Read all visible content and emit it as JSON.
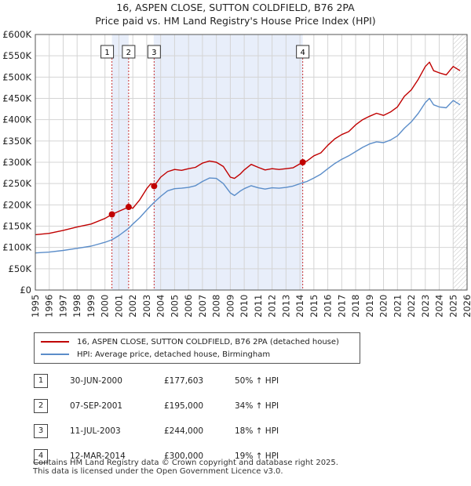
{
  "header": {
    "title": "16, ASPEN CLOSE, SUTTON COLDFIELD, B76 2PA",
    "subtitle": "Price paid vs. HM Land Registry's House Price Index (HPI)"
  },
  "colors": {
    "property": "#c00000",
    "hpi": "#5b8dc9",
    "shade": "#e8eefa",
    "grid": "#d4d4d4",
    "hatch": "#999999"
  },
  "chart_data": {
    "type": "line",
    "title": "16, ASPEN CLOSE, SUTTON COLDFIELD, B76 2PA",
    "xlabel": "",
    "ylabel": "",
    "xlim": [
      1995,
      2026
    ],
    "ylim": [
      0,
      600000
    ],
    "x_ticks": [
      "1995",
      "1996",
      "1997",
      "1998",
      "1999",
      "2000",
      "2001",
      "2002",
      "2003",
      "2004",
      "2005",
      "2006",
      "2007",
      "2008",
      "2009",
      "2010",
      "2011",
      "2012",
      "2013",
      "2014",
      "2015",
      "2016",
      "2017",
      "2018",
      "2019",
      "2020",
      "2021",
      "2022",
      "2023",
      "2024",
      "2025",
      "2026"
    ],
    "y_ticks": [
      {
        "value": 0,
        "label": "£0"
      },
      {
        "value": 50000,
        "label": "£50K"
      },
      {
        "value": 100000,
        "label": "£100K"
      },
      {
        "value": 150000,
        "label": "£150K"
      },
      {
        "value": 200000,
        "label": "£200K"
      },
      {
        "value": 250000,
        "label": "£250K"
      },
      {
        "value": 300000,
        "label": "£300K"
      },
      {
        "value": 350000,
        "label": "£350K"
      },
      {
        "value": 400000,
        "label": "£400K"
      },
      {
        "value": 450000,
        "label": "£450K"
      },
      {
        "value": 500000,
        "label": "£500K"
      },
      {
        "value": 550000,
        "label": "£550K"
      },
      {
        "value": 600000,
        "label": "£600K"
      }
    ],
    "grid": true,
    "shaded_ranges": [
      [
        2000.5,
        2001.7
      ],
      [
        2003.5,
        2014.2
      ]
    ],
    "forecast_from": 2025.0,
    "series": [
      {
        "name": "16, ASPEN CLOSE, SUTTON COLDFIELD, B76 2PA (detached house)",
        "color": "#c00000",
        "x": [
          1995.0,
          1996.0,
          1997.0,
          1998.0,
          1999.0,
          2000.0,
          2000.5,
          2001.0,
          2001.7,
          2002.0,
          2002.5,
          2003.0,
          2003.3,
          2003.53,
          2004.0,
          2004.5,
          2005.0,
          2005.5,
          2006.0,
          2006.5,
          2007.0,
          2007.5,
          2008.0,
          2008.5,
          2009.0,
          2009.3,
          2009.7,
          2010.0,
          2010.5,
          2011.0,
          2011.5,
          2012.0,
          2012.5,
          2013.0,
          2013.5,
          2014.2,
          2014.5,
          2015.0,
          2015.5,
          2016.0,
          2016.5,
          2017.0,
          2017.5,
          2018.0,
          2018.5,
          2019.0,
          2019.5,
          2020.0,
          2020.5,
          2021.0,
          2021.5,
          2022.0,
          2022.5,
          2023.0,
          2023.3,
          2023.6,
          2024.0,
          2024.5,
          2025.0,
          2025.5
        ],
        "values": [
          130000,
          133000,
          140000,
          148000,
          155000,
          168000,
          177603,
          185000,
          195000,
          192000,
          212000,
          238000,
          250000,
          244000,
          265000,
          278000,
          283000,
          281000,
          285000,
          288000,
          298000,
          303000,
          300000,
          290000,
          265000,
          262000,
          272000,
          282000,
          295000,
          288000,
          282000,
          285000,
          283000,
          285000,
          287000,
          300000,
          303000,
          315000,
          322000,
          340000,
          355000,
          365000,
          372000,
          388000,
          400000,
          408000,
          415000,
          410000,
          418000,
          430000,
          455000,
          470000,
          495000,
          525000,
          535000,
          515000,
          510000,
          505000,
          525000,
          515000
        ]
      },
      {
        "name": "HPI: Average price, detached house, Birmingham",
        "color": "#5b8dc9",
        "x": [
          1995.0,
          1996.0,
          1997.0,
          1998.0,
          1999.0,
          2000.0,
          2000.5,
          2001.0,
          2001.7,
          2002.0,
          2002.5,
          2003.0,
          2003.5,
          2004.0,
          2004.5,
          2005.0,
          2005.5,
          2006.0,
          2006.5,
          2007.0,
          2007.5,
          2008.0,
          2008.5,
          2009.0,
          2009.3,
          2009.7,
          2010.0,
          2010.5,
          2011.0,
          2011.5,
          2012.0,
          2012.5,
          2013.0,
          2013.5,
          2014.2,
          2014.5,
          2015.0,
          2015.5,
          2016.0,
          2016.5,
          2017.0,
          2017.5,
          2018.0,
          2018.5,
          2019.0,
          2019.5,
          2020.0,
          2020.5,
          2021.0,
          2021.5,
          2022.0,
          2022.5,
          2023.0,
          2023.3,
          2023.6,
          2024.0,
          2024.5,
          2025.0,
          2025.5
        ],
        "values": [
          87000,
          89000,
          93000,
          98000,
          103000,
          112000,
          118000,
          128000,
          145000,
          155000,
          170000,
          188000,
          205000,
          220000,
          233000,
          238000,
          239000,
          241000,
          245000,
          255000,
          263000,
          262000,
          250000,
          228000,
          222000,
          232000,
          238000,
          245000,
          240000,
          237000,
          240000,
          239000,
          241000,
          244000,
          252000,
          255000,
          263000,
          272000,
          285000,
          297000,
          307000,
          315000,
          325000,
          335000,
          343000,
          348000,
          346000,
          352000,
          362000,
          380000,
          395000,
          415000,
          440000,
          450000,
          435000,
          430000,
          428000,
          445000,
          435000
        ]
      }
    ],
    "sale_points": [
      {
        "label": "1",
        "x": 2000.5,
        "value": 177603
      },
      {
        "label": "2",
        "x": 2001.7,
        "value": 195000
      },
      {
        "label": "3",
        "x": 2003.53,
        "value": 244000
      },
      {
        "label": "4",
        "x": 2014.2,
        "value": 300000
      }
    ]
  },
  "legend": {
    "items": [
      {
        "label": "16, ASPEN CLOSE, SUTTON COLDFIELD, B76 2PA (detached house)",
        "color": "#c00000"
      },
      {
        "label": "HPI: Average price, detached house, Birmingham",
        "color": "#5b8dc9"
      }
    ]
  },
  "sales": [
    {
      "num": "1",
      "date": "30-JUN-2000",
      "price": "£177,603",
      "hpi": "50% ↑ HPI"
    },
    {
      "num": "2",
      "date": "07-SEP-2001",
      "price": "£195,000",
      "hpi": "34% ↑ HPI"
    },
    {
      "num": "3",
      "date": "11-JUL-2003",
      "price": "£244,000",
      "hpi": "18% ↑ HPI"
    },
    {
      "num": "4",
      "date": "12-MAR-2014",
      "price": "£300,000",
      "hpi": "19% ↑ HPI"
    }
  ],
  "footer": {
    "line1": "Contains HM Land Registry data © Crown copyright and database right 2025.",
    "line2": "This data is licensed under the Open Government Licence v3.0."
  }
}
